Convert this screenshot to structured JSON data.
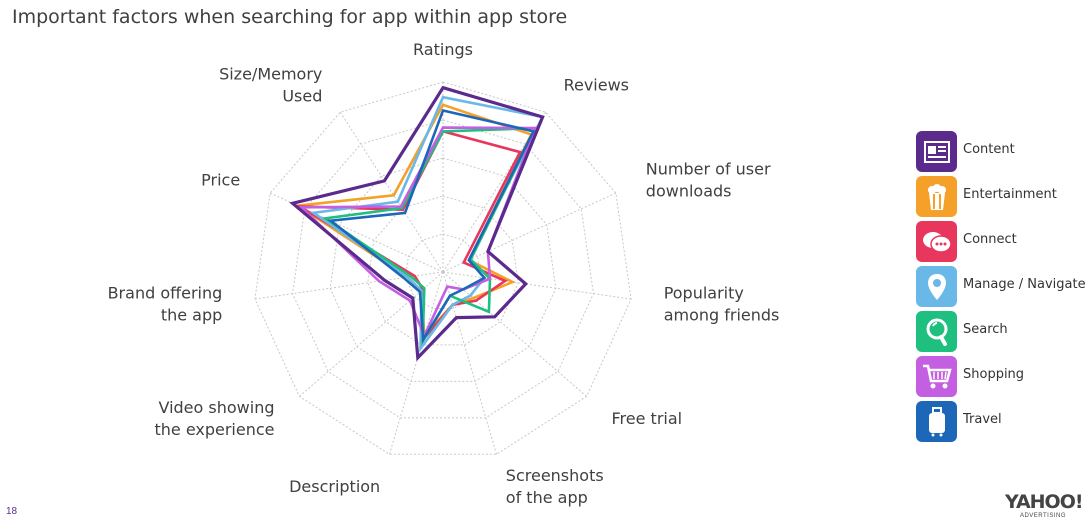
{
  "page": {
    "title": "Important factors when searching for app within app store",
    "page_number": "18"
  },
  "logo": {
    "text": "YAHOO!",
    "subtext": "ADVERTISING"
  },
  "colors": {
    "Content": "#5a2a8c",
    "Entertainment": "#f5a029",
    "Connect": "#e8365d",
    "Manage / Navigate": "#6ab8e8",
    "Search": "#1fbf7f",
    "Shopping": "#c35fe0",
    "Travel": "#1c67b8"
  },
  "legend": [
    {
      "name": "Content",
      "icon": "newspaper-icon"
    },
    {
      "name": "Entertainment",
      "icon": "popcorn-icon"
    },
    {
      "name": "Connect",
      "icon": "chat-bubbles-icon"
    },
    {
      "name": "Manage / Navigate",
      "icon": "map-pin-icon"
    },
    {
      "name": "Search",
      "icon": "magnifier-icon"
    },
    {
      "name": "Shopping",
      "icon": "shopping-cart-icon"
    },
    {
      "name": "Travel",
      "icon": "suitcase-icon"
    }
  ],
  "chart_data": {
    "type": "radar",
    "title": "Important factors when searching for app within app store",
    "axes": [
      "Ratings",
      "Reviews",
      "Number of user downloads",
      "Popularity among friends",
      "Free trial",
      "Screenshots of the app",
      "Description",
      "Video showing the experience",
      "Brand offering the app",
      "Price",
      "Size/Memory Used"
    ],
    "axis_labels_lines": [
      [
        "Ratings"
      ],
      [
        "Reviews"
      ],
      [
        "Number of user",
        "downloads"
      ],
      [
        "Popularity",
        "among friends"
      ],
      [
        "Free trial"
      ],
      [
        "Screenshots",
        "of the app"
      ],
      [
        "Description"
      ],
      [
        "Video showing",
        "the experience"
      ],
      [
        "Brand offering",
        "the app"
      ],
      [
        "Price"
      ],
      [
        "Size/Memory",
        "Used"
      ]
    ],
    "range": [
      0,
      100
    ],
    "grid_levels": 5,
    "series": [
      {
        "name": "Content",
        "values": [
          97,
          97,
          26,
          44,
          36,
          25,
          47,
          21,
          31,
          87,
          57
        ]
      },
      {
        "name": "Entertainment",
        "values": [
          88,
          86,
          15,
          37,
          21,
          18,
          35,
          15,
          19,
          84,
          48
        ]
      },
      {
        "name": "Connect",
        "values": [
          74,
          75,
          12,
          33,
          23,
          18,
          37,
          14,
          15,
          83,
          39
        ]
      },
      {
        "name": "Manage / Navigate",
        "values": [
          92,
          97,
          15,
          22,
          19,
          18,
          42,
          15,
          19,
          75,
          44
        ]
      },
      {
        "name": "Search",
        "values": [
          74,
          90,
          16,
          25,
          32,
          13,
          38,
          13,
          17,
          68,
          40
        ]
      },
      {
        "name": "Shopping",
        "values": [
          76,
          90,
          26,
          25,
          14,
          8,
          35,
          23,
          34,
          82,
          41
        ]
      },
      {
        "name": "Travel",
        "values": [
          85,
          88,
          15,
          22,
          14,
          13,
          37,
          16,
          21,
          65,
          37
        ]
      }
    ]
  }
}
